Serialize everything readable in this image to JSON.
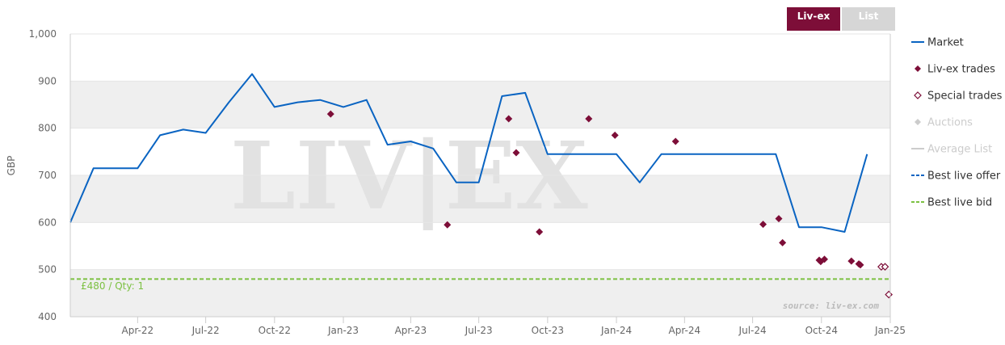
{
  "toggles": {
    "livex_label": "Liv-ex",
    "list_label": "List"
  },
  "watermark": "LIV|EX",
  "source": "source: liv-ex.com",
  "bid_label": "£480 / Qty: 1",
  "colors": {
    "market": "#0a64c2",
    "livex_trade": "#7d0e38",
    "special_trade": "#7d0e38",
    "auction": "#cccccc",
    "average_list": "#cccccc",
    "best_offer": "#0a64c2",
    "best_bid": "#7cc142",
    "band": "#efefef"
  },
  "chart_data": {
    "type": "line",
    "ylabel": "GBP",
    "ylim": [
      400,
      1000
    ],
    "xlim": [
      "2022-01-01",
      "2025-01-01"
    ],
    "yticks": [
      "400",
      "500",
      "600",
      "700",
      "800",
      "900",
      "1,000"
    ],
    "xticks": [
      {
        "label": "Apr-22",
        "date": "2022-04-01"
      },
      {
        "label": "Jul-22",
        "date": "2022-07-01"
      },
      {
        "label": "Oct-22",
        "date": "2022-10-01"
      },
      {
        "label": "Jan-23",
        "date": "2023-01-01"
      },
      {
        "label": "Apr-23",
        "date": "2023-04-01"
      },
      {
        "label": "Jul-23",
        "date": "2023-07-01"
      },
      {
        "label": "Oct-23",
        "date": "2023-10-01"
      },
      {
        "label": "Jan-24",
        "date": "2024-01-01"
      },
      {
        "label": "Apr-24",
        "date": "2024-04-01"
      },
      {
        "label": "Jul-24",
        "date": "2024-07-01"
      },
      {
        "label": "Oct-24",
        "date": "2024-10-01"
      },
      {
        "label": "Jan-25",
        "date": "2025-01-01"
      }
    ],
    "legend": {
      "position": "right"
    },
    "series": [
      {
        "name": "Market",
        "kind": "line",
        "color": "#0a64c2",
        "points": [
          [
            "2022-01-01",
            600
          ],
          [
            "2022-02-01",
            715
          ],
          [
            "2022-03-01",
            715
          ],
          [
            "2022-04-01",
            715
          ],
          [
            "2022-05-01",
            785
          ],
          [
            "2022-06-01",
            797
          ],
          [
            "2022-07-01",
            790
          ],
          [
            "2022-08-01",
            855
          ],
          [
            "2022-09-01",
            915
          ],
          [
            "2022-10-01",
            845
          ],
          [
            "2022-11-01",
            855
          ],
          [
            "2022-12-01",
            860
          ],
          [
            "2023-01-01",
            845
          ],
          [
            "2023-02-01",
            860
          ],
          [
            "2023-03-01",
            765
          ],
          [
            "2023-04-01",
            772
          ],
          [
            "2023-05-01",
            757
          ],
          [
            "2023-06-01",
            685
          ],
          [
            "2023-07-01",
            685
          ],
          [
            "2023-08-01",
            868
          ],
          [
            "2023-09-01",
            875
          ],
          [
            "2023-10-01",
            745
          ],
          [
            "2023-11-01",
            745
          ],
          [
            "2023-12-01",
            745
          ],
          [
            "2024-01-01",
            745
          ],
          [
            "2024-02-01",
            685
          ],
          [
            "2024-03-01",
            745
          ],
          [
            "2024-04-01",
            745
          ],
          [
            "2024-05-01",
            745
          ],
          [
            "2024-06-01",
            745
          ],
          [
            "2024-07-01",
            745
          ],
          [
            "2024-08-01",
            745
          ],
          [
            "2024-09-01",
            590
          ],
          [
            "2024-10-01",
            590
          ],
          [
            "2024-11-01",
            580
          ],
          [
            "2024-12-01",
            745
          ]
        ]
      },
      {
        "name": "Liv-ex trades",
        "kind": "diamond",
        "color": "#7d0e38",
        "points": [
          [
            "2022-12-15",
            830
          ],
          [
            "2023-05-20",
            595
          ],
          [
            "2023-08-10",
            820
          ],
          [
            "2023-08-20",
            748
          ],
          [
            "2023-09-20",
            580
          ],
          [
            "2023-11-25",
            820
          ],
          [
            "2023-12-30",
            785
          ],
          [
            "2024-03-20",
            772
          ],
          [
            "2024-07-15",
            596
          ],
          [
            "2024-08-05",
            608
          ],
          [
            "2024-08-10",
            557
          ],
          [
            "2024-09-28",
            520
          ],
          [
            "2024-09-30",
            517
          ],
          [
            "2024-10-05",
            522
          ],
          [
            "2024-11-10",
            518
          ],
          [
            "2024-11-20",
            512
          ],
          [
            "2024-11-22",
            510
          ]
        ]
      },
      {
        "name": "Special trades",
        "kind": "diamond-open",
        "color": "#7d0e38",
        "points": [
          [
            "2024-12-20",
            506
          ],
          [
            "2024-12-25",
            506
          ],
          [
            "2024-12-30",
            447
          ]
        ]
      },
      {
        "name": "Auctions",
        "kind": "diamond",
        "color": "#cccccc",
        "inactive": true,
        "points": []
      },
      {
        "name": "Average List",
        "kind": "line",
        "color": "#cccccc",
        "inactive": true,
        "points": []
      },
      {
        "name": "Best live offer",
        "kind": "dash",
        "color": "#0a64c2",
        "points": []
      },
      {
        "name": "Best live bid",
        "kind": "dash",
        "color": "#7cc142",
        "value": 480,
        "label": "£480 / Qty: 1"
      }
    ]
  }
}
